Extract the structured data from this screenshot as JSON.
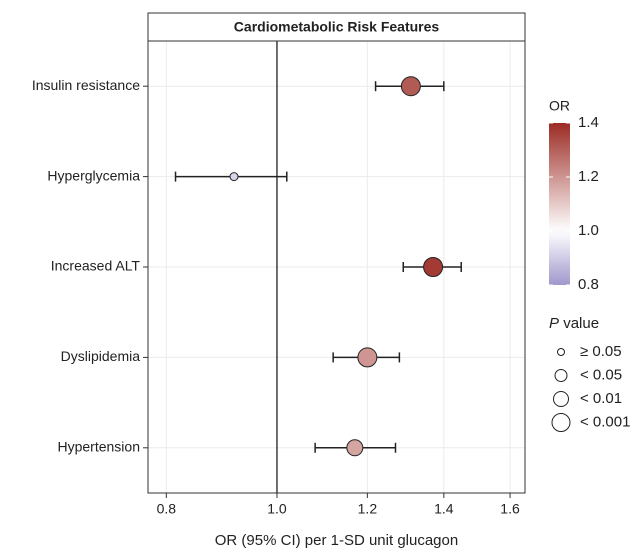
{
  "chart_data": {
    "type": "forest",
    "title": "Cardiometabolic Risk Features",
    "x_label": "OR (95% CI) per 1-SD unit glucagon",
    "categories": [
      "Insulin resistance",
      "Hyperglycemia",
      "Increased ALT",
      "Dyslipidemia",
      "Hypertension"
    ],
    "values": [
      1.31,
      0.917,
      1.37,
      1.2,
      1.17
    ],
    "lower": [
      1.22,
      0.815,
      1.29,
      1.12,
      1.08
    ],
    "upper": [
      1.4,
      1.02,
      1.45,
      1.28,
      1.27
    ],
    "p_value": [
      "< 0.001",
      "≥ 0.05",
      "< 0.001",
      "< 0.001",
      "< 0.01"
    ],
    "log_x": true,
    "xlim": [
      0.771,
      1.649
    ],
    "xticks": [
      0.8,
      {
        "value": 1,
        "label": "1.0"
      },
      1.2,
      1.4,
      1.6
    ],
    "reference": 1,
    "grid": true,
    "color_scale": {
      "title": "OR",
      "lim": [
        0.8,
        1.4
      ],
      "ticks": [
        0.8,
        {
          "value": 1,
          "label": "1.0"
        },
        1.2,
        1.4
      ],
      "low": "#a197cc",
      "mid": "#ffffff",
      "high": "#9c2b24"
    },
    "size_legend": {
      "title_italic": "P",
      "title": "value",
      "labels": [
        "≥ 0.05",
        "< 0.05",
        "< 0.01",
        "< 0.001"
      ]
    }
  }
}
